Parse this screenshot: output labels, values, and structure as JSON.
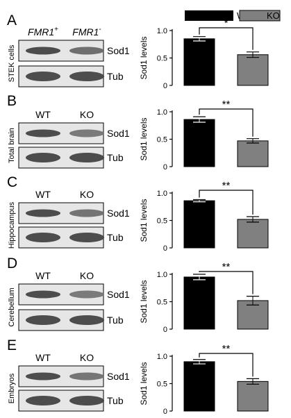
{
  "legend": [
    {
      "name": "WT",
      "color": "#000000"
    },
    {
      "name": "KO",
      "color": "#808080"
    }
  ],
  "blot_labels": {
    "sod1": "Sod1",
    "tub": "Tub"
  },
  "chart_data": [
    {
      "type": "bar",
      "panel_label": "A",
      "tissue": "STEK cells",
      "lane_labels": [
        "FMR1+",
        "FMR1-"
      ],
      "categories": [
        "WT",
        "KO"
      ],
      "values": [
        0.85,
        0.56
      ],
      "errors": [
        0.04,
        0.05
      ],
      "ylabel": "Sod1 levels",
      "ylim": [
        0,
        1.0
      ],
      "yticks": [
        0,
        0.5,
        1.0
      ],
      "ytick_labels": [
        "0",
        "0.5",
        "1.0"
      ],
      "significance": "*"
    },
    {
      "type": "bar",
      "panel_label": "B",
      "tissue": "Total brain",
      "lane_labels": [
        "WT",
        "KO"
      ],
      "categories": [
        "WT",
        "KO"
      ],
      "values": [
        0.86,
        0.47
      ],
      "errors": [
        0.05,
        0.04
      ],
      "ylabel": "Sod1 levels",
      "ylim": [
        0,
        1.0
      ],
      "yticks": [
        0,
        0.5,
        1.0
      ],
      "ytick_labels": [
        "0",
        "0.5",
        "1.0"
      ],
      "significance": "**"
    },
    {
      "type": "bar",
      "panel_label": "C",
      "tissue": "Hippocampus",
      "lane_labels": [
        "WT",
        "KO"
      ],
      "categories": [
        "WT",
        "KO"
      ],
      "values": [
        0.86,
        0.52
      ],
      "errors": [
        0.02,
        0.05
      ],
      "ylabel": "Sod1 levels",
      "ylim": [
        0,
        1.0
      ],
      "yticks": [
        0,
        0.5,
        1.0
      ],
      "ytick_labels": [
        "0",
        "0.5",
        "1.0"
      ],
      "significance": "**"
    },
    {
      "type": "bar",
      "panel_label": "D",
      "tissue": "Cerebellum",
      "lane_labels": [
        "WT",
        "KO"
      ],
      "categories": [
        "WT",
        "KO"
      ],
      "values": [
        0.95,
        0.52
      ],
      "errors": [
        0.05,
        0.08
      ],
      "ylabel": "Sod1 levels",
      "ylim": [
        0,
        1.0
      ],
      "yticks": [
        0,
        0.5,
        1.0
      ],
      "ytick_labels": [
        "0",
        "0.5",
        "1.0"
      ],
      "significance": "**"
    },
    {
      "type": "bar",
      "panel_label": "E",
      "tissue": "Embryos",
      "lane_labels": [
        "WT",
        "KO"
      ],
      "categories": [
        "WT",
        "KO"
      ],
      "values": [
        0.9,
        0.54
      ],
      "errors": [
        0.04,
        0.05
      ],
      "ylabel": "Sod1 levels",
      "ylim": [
        0,
        1.0
      ],
      "yticks": [
        0,
        0.5,
        1.0
      ],
      "ytick_labels": [
        "0",
        "0.5",
        "1.0"
      ],
      "significance": "**"
    }
  ]
}
